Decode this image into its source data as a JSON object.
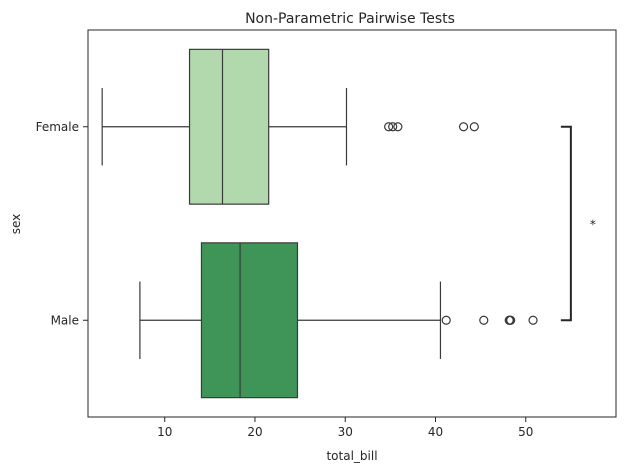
{
  "chart_data": {
    "type": "boxplot",
    "orientation": "horizontal",
    "title": "Non-Parametric Pairwise Tests",
    "xlabel": "total_bill",
    "ylabel": "sex",
    "xlim": [
      1.5,
      60
    ],
    "xticks": [
      10,
      20,
      30,
      40,
      50
    ],
    "xtick_labels": [
      "10",
      "20",
      "30",
      "40",
      "50"
    ],
    "grid": false,
    "categories": [
      "Female",
      "Male"
    ],
    "series": [
      {
        "category": "Female",
        "color": "#b2d8ad",
        "whisker_low": 3.07,
        "q1": 12.75,
        "median": 16.4,
        "q3": 21.52,
        "whisker_high": 30.14,
        "outliers": [
          34.81,
          35.26,
          35.83,
          43.11,
          44.3
        ]
      },
      {
        "category": "Male",
        "color": "#3f9458",
        "whisker_low": 7.25,
        "q1": 14.07,
        "median": 18.35,
        "q3": 24.71,
        "whisker_high": 40.55,
        "outliers": [
          41.19,
          45.35,
          48.17,
          48.27,
          48.33,
          50.81
        ]
      }
    ],
    "annotation": {
      "text": "*",
      "between": [
        "Female",
        "Male"
      ],
      "bracket_x": 55
    }
  }
}
